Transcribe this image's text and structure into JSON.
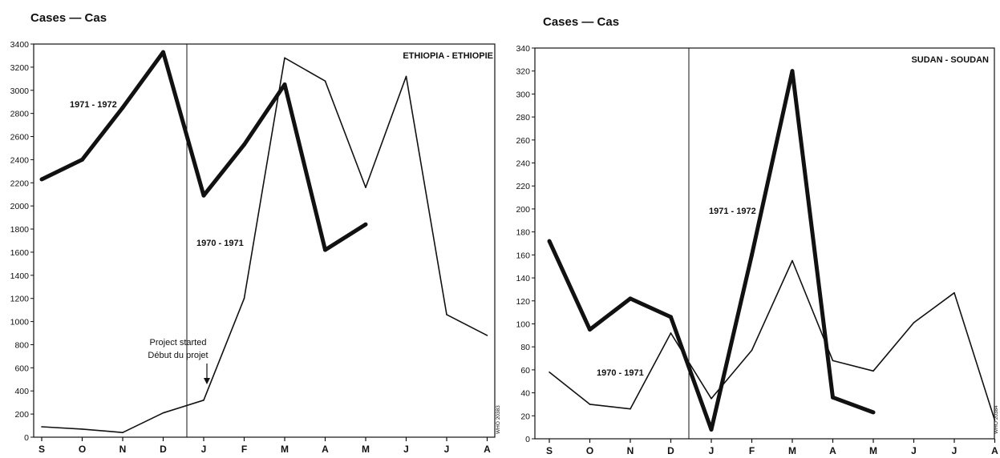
{
  "chart_data": [
    {
      "type": "line",
      "title": "ETHIOPIA - ETHIOPIE",
      "ylabel": "Cases — Cas",
      "xlabel": "",
      "categories": [
        "S",
        "O",
        "N",
        "D",
        "J",
        "F",
        "M",
        "A",
        "M",
        "J",
        "J",
        "A"
      ],
      "ylim": [
        0,
        3400
      ],
      "yticks": [
        0,
        200,
        400,
        600,
        800,
        1000,
        1200,
        1400,
        1600,
        1800,
        2000,
        2200,
        2400,
        2600,
        2800,
        3000,
        3200,
        3400
      ],
      "grid": false,
      "series": [
        {
          "name": "1971 - 1972",
          "values": [
            2230,
            2400,
            2850,
            3330,
            2090,
            2530,
            3050,
            1620,
            1840,
            null,
            null,
            null
          ]
        },
        {
          "name": "1970 - 1971",
          "values": [
            90,
            70,
            40,
            210,
            320,
            1200,
            3280,
            3080,
            2160,
            3120,
            1060,
            880
          ]
        }
      ],
      "annotations": [
        {
          "text": "Project started",
          "month": "J"
        },
        {
          "text": "Début du projet",
          "month": "J"
        }
      ],
      "code": "WHO 20383"
    },
    {
      "type": "line",
      "title": "SUDAN - SOUDAN",
      "ylabel": "Cases — Cas",
      "xlabel": "",
      "categories": [
        "S",
        "O",
        "N",
        "D",
        "J",
        "F",
        "M",
        "A",
        "M",
        "J",
        "J",
        "A"
      ],
      "ylim": [
        0,
        340
      ],
      "yticks": [
        0,
        20,
        40,
        60,
        80,
        100,
        120,
        140,
        160,
        180,
        200,
        220,
        240,
        260,
        280,
        300,
        320,
        340
      ],
      "grid": false,
      "series": [
        {
          "name": "1971 - 1972",
          "values": [
            172,
            95,
            122,
            106,
            8,
            160,
            320,
            36,
            23,
            null,
            null,
            null
          ]
        },
        {
          "name": "1970 - 1971",
          "values": [
            58,
            30,
            26,
            92,
            35,
            77,
            155,
            68,
            59,
            101,
            127,
            16
          ]
        }
      ],
      "code": "WHO 20384"
    }
  ]
}
